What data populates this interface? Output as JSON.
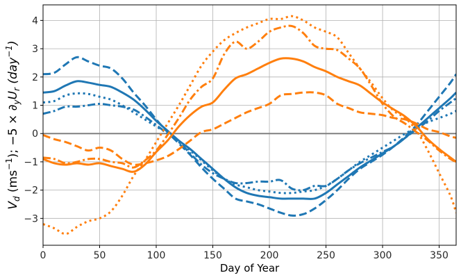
{
  "chart_data": {
    "type": "line",
    "title": "",
    "xlabel": "Day of Year",
    "ylabel_parts": {
      "v": "V",
      "v_sub": "d",
      "unit1_open": " (ms",
      "unit1_sup": "−1",
      "unit1_close": "); −5 × ∂",
      "dy_sub": "y",
      "u": "U",
      "u_sub": "r",
      "unit2_open": " (day",
      "unit2_sup": "−1",
      "unit2_close": ")"
    },
    "xlim": [
      0,
      365
    ],
    "ylim": [
      -3.95,
      4.55
    ],
    "xticks": [
      0,
      50,
      100,
      150,
      200,
      250,
      300,
      350
    ],
    "yticks": [
      -3,
      -2,
      -1,
      0,
      1,
      2,
      3,
      4
    ],
    "grid": true,
    "zero_line_color": "#808080",
    "series": [
      {
        "name": "blue-solid",
        "color": "#1f77b4",
        "dash": "solid",
        "x": [
          0,
          10,
          20,
          30,
          40,
          50,
          60,
          70,
          80,
          90,
          100,
          110,
          120,
          130,
          140,
          150,
          160,
          170,
          180,
          190,
          200,
          210,
          220,
          230,
          240,
          250,
          260,
          270,
          280,
          290,
          300,
          310,
          320,
          330,
          340,
          350,
          360,
          365
        ],
        "y": [
          1.45,
          1.5,
          1.7,
          1.85,
          1.8,
          1.72,
          1.65,
          1.45,
          1.2,
          0.85,
          0.45,
          0.1,
          -0.25,
          -0.55,
          -0.9,
          -1.25,
          -1.6,
          -1.9,
          -2.1,
          -2.2,
          -2.25,
          -2.3,
          -2.3,
          -2.3,
          -2.3,
          -2.1,
          -1.8,
          -1.5,
          -1.2,
          -0.95,
          -0.7,
          -0.45,
          -0.15,
          0.2,
          0.55,
          0.9,
          1.25,
          1.45
        ]
      },
      {
        "name": "blue-dashed",
        "color": "#1f77b4",
        "dash": "dashed",
        "x": [
          0,
          10,
          20,
          30,
          40,
          50,
          60,
          70,
          80,
          90,
          100,
          110,
          120,
          130,
          140,
          150,
          160,
          170,
          180,
          190,
          200,
          210,
          220,
          230,
          240,
          250,
          260,
          270,
          280,
          290,
          300,
          310,
          320,
          330,
          340,
          350,
          360,
          365
        ],
        "y": [
          2.1,
          2.15,
          2.45,
          2.7,
          2.55,
          2.4,
          2.3,
          1.95,
          1.45,
          1.0,
          0.5,
          0.05,
          -0.35,
          -0.75,
          -1.2,
          -1.6,
          -1.95,
          -2.3,
          -2.4,
          -2.5,
          -2.65,
          -2.8,
          -2.9,
          -2.85,
          -2.65,
          -2.35,
          -2.0,
          -1.6,
          -1.25,
          -1.0,
          -0.75,
          -0.45,
          -0.1,
          0.3,
          0.8,
          1.3,
          1.8,
          2.1
        ]
      },
      {
        "name": "blue-dotted",
        "color": "#1f77b4",
        "dash": "dotted",
        "x": [
          0,
          10,
          20,
          30,
          40,
          50,
          60,
          70,
          80,
          90,
          100,
          110,
          120,
          130,
          140,
          150,
          160,
          170,
          180,
          190,
          200,
          210,
          220,
          230,
          240,
          250,
          260,
          270,
          280,
          290,
          300,
          310,
          320,
          330,
          340,
          350,
          360,
          365
        ],
        "y": [
          1.1,
          1.15,
          1.35,
          1.42,
          1.4,
          1.3,
          1.2,
          1.0,
          0.75,
          0.5,
          0.25,
          0.0,
          -0.3,
          -0.6,
          -0.95,
          -1.3,
          -1.6,
          -1.8,
          -1.9,
          -2.0,
          -2.05,
          -2.1,
          -2.1,
          -2.05,
          -2.0,
          -1.85,
          -1.6,
          -1.3,
          -1.0,
          -0.75,
          -0.5,
          -0.25,
          0.0,
          0.2,
          0.4,
          0.55,
          0.7,
          0.8
        ]
      },
      {
        "name": "blue-dashdot",
        "color": "#1f77b4",
        "dash": "dashdot",
        "x": [
          0,
          10,
          20,
          30,
          40,
          50,
          60,
          70,
          80,
          90,
          100,
          110,
          120,
          130,
          140,
          150,
          160,
          170,
          180,
          190,
          200,
          210,
          220,
          230,
          240,
          250,
          260,
          270,
          280,
          290,
          300,
          310,
          320,
          330,
          340,
          350,
          360,
          365
        ],
        "y": [
          0.7,
          0.8,
          0.95,
          0.95,
          1.0,
          1.05,
          1.0,
          0.95,
          0.85,
          0.6,
          0.3,
          0.0,
          -0.3,
          -0.7,
          -1.1,
          -1.4,
          -1.6,
          -1.75,
          -1.75,
          -1.7,
          -1.7,
          -1.65,
          -1.95,
          -2.0,
          -1.85,
          -1.85,
          -1.6,
          -1.3,
          -1.05,
          -0.85,
          -0.65,
          -0.45,
          -0.15,
          0.15,
          0.45,
          0.8,
          1.1,
          1.25
        ]
      },
      {
        "name": "orange-solid",
        "color": "#ff7f0e",
        "dash": "solid",
        "x": [
          0,
          10,
          20,
          30,
          40,
          50,
          60,
          70,
          80,
          90,
          100,
          110,
          120,
          130,
          140,
          150,
          160,
          170,
          180,
          190,
          200,
          210,
          220,
          230,
          240,
          250,
          260,
          270,
          280,
          290,
          300,
          310,
          320,
          330,
          340,
          350,
          360,
          365
        ],
        "y": [
          -0.9,
          -1.05,
          -1.1,
          -1.05,
          -1.1,
          -1.05,
          -1.15,
          -1.25,
          -1.35,
          -1.1,
          -0.65,
          -0.25,
          0.25,
          0.65,
          0.95,
          1.1,
          1.55,
          1.95,
          2.1,
          2.3,
          2.5,
          2.65,
          2.65,
          2.55,
          2.35,
          2.2,
          2.0,
          1.85,
          1.7,
          1.4,
          1.1,
          0.85,
          0.6,
          0.25,
          -0.2,
          -0.55,
          -0.85,
          -1.0
        ]
      },
      {
        "name": "orange-dashed",
        "color": "#ff7f0e",
        "dash": "dashed",
        "x": [
          0,
          10,
          20,
          30,
          40,
          50,
          60,
          70,
          80,
          90,
          100,
          110,
          120,
          130,
          140,
          150,
          160,
          170,
          180,
          190,
          200,
          210,
          220,
          230,
          240,
          250,
          260,
          270,
          280,
          290,
          300,
          310,
          320,
          330,
          340,
          350,
          360,
          365
        ],
        "y": [
          -0.05,
          -0.2,
          -0.3,
          -0.45,
          -0.6,
          -0.5,
          -0.6,
          -0.9,
          -1.1,
          -1.05,
          -0.95,
          -0.8,
          -0.55,
          -0.25,
          0.05,
          0.15,
          0.35,
          0.55,
          0.75,
          0.9,
          1.05,
          1.35,
          1.4,
          1.45,
          1.45,
          1.35,
          1.05,
          0.9,
          0.75,
          0.7,
          0.65,
          0.55,
          0.5,
          0.35,
          0.15,
          0.05,
          -0.1,
          -0.15
        ]
      },
      {
        "name": "orange-dotted",
        "color": "#ff7f0e",
        "dash": "dotted",
        "x": [
          0,
          10,
          20,
          30,
          40,
          50,
          60,
          70,
          80,
          90,
          100,
          110,
          120,
          130,
          140,
          150,
          160,
          170,
          180,
          190,
          200,
          210,
          220,
          230,
          240,
          250,
          260,
          270,
          280,
          290,
          300,
          310,
          320,
          330,
          340,
          350,
          360,
          365
        ],
        "y": [
          -3.2,
          -3.35,
          -3.55,
          -3.3,
          -3.1,
          -3.0,
          -2.75,
          -2.2,
          -1.5,
          -0.95,
          -0.3,
          0.35,
          1.0,
          1.7,
          2.4,
          2.9,
          3.3,
          3.55,
          3.75,
          3.9,
          4.05,
          4.05,
          4.15,
          4.0,
          3.75,
          3.6,
          3.4,
          2.85,
          2.3,
          1.8,
          1.25,
          0.8,
          0.55,
          0.1,
          -0.6,
          -1.4,
          -2.2,
          -2.8
        ]
      },
      {
        "name": "orange-dashdot",
        "color": "#ff7f0e",
        "dash": "dashdot",
        "x": [
          0,
          10,
          20,
          30,
          40,
          50,
          60,
          70,
          80,
          90,
          100,
          110,
          120,
          130,
          140,
          150,
          160,
          170,
          180,
          190,
          200,
          210,
          220,
          230,
          240,
          250,
          260,
          270,
          280,
          290,
          300,
          310,
          320,
          330,
          340,
          350,
          360,
          365
        ],
        "y": [
          -0.85,
          -0.9,
          -1.05,
          -1.0,
          -0.9,
          -0.9,
          -1.0,
          -1.05,
          -1.2,
          -0.95,
          -0.6,
          -0.05,
          0.55,
          1.2,
          1.65,
          1.95,
          2.8,
          3.25,
          3.0,
          3.25,
          3.6,
          3.75,
          3.8,
          3.55,
          3.1,
          3.0,
          2.95,
          2.65,
          2.3,
          1.7,
          1.05,
          0.6,
          0.35,
          0.05,
          -0.25,
          -0.6,
          -0.9,
          -1.0
        ]
      }
    ]
  }
}
